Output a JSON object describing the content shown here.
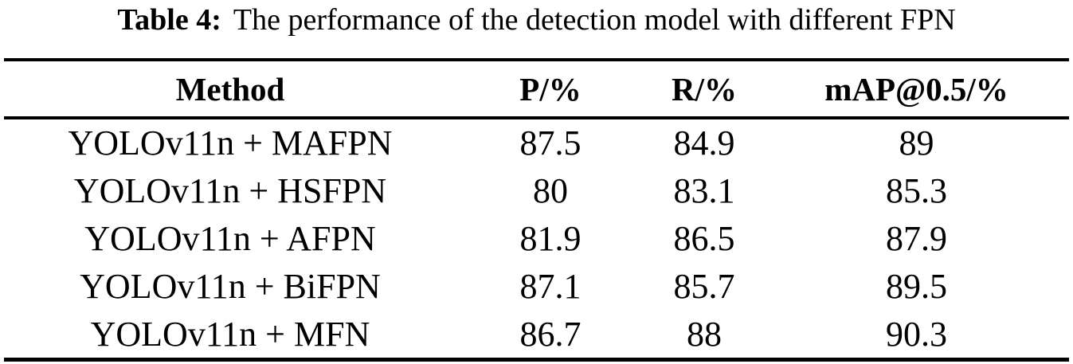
{
  "caption": {
    "label": "Table 4:",
    "text": "The performance of the detection model with different FPN"
  },
  "table": {
    "headers": {
      "method": "Method",
      "p": "P/%",
      "r": "R/%",
      "map": "mAP@0.5/%"
    },
    "rows": [
      {
        "method": "YOLOv11n + MAFPN",
        "p": "87.5",
        "r": "84.9",
        "map": "89"
      },
      {
        "method": "YOLOv11n + HSFPN",
        "p": "80",
        "r": "83.1",
        "map": "85.3"
      },
      {
        "method": "YOLOv11n + AFPN",
        "p": "81.9",
        "r": "86.5",
        "map": "87.9"
      },
      {
        "method": "YOLOv11n + BiFPN",
        "p": "87.1",
        "r": "85.7",
        "map": "89.5"
      },
      {
        "method": "YOLOv11n + MFN",
        "p": "86.7",
        "r": "88",
        "map": "90.3"
      }
    ]
  },
  "chart_data": {
    "type": "table",
    "title": "Table 4: The performance of the detection model with different FPN",
    "columns": [
      "Method",
      "P/%",
      "R/%",
      "mAP@0.5/%"
    ],
    "categories": [
      "YOLOv11n + MAFPN",
      "YOLOv11n + HSFPN",
      "YOLOv11n + AFPN",
      "YOLOv11n + BiFPN",
      "YOLOv11n + MFN"
    ],
    "series": [
      {
        "name": "P/%",
        "values": [
          87.5,
          80,
          81.9,
          87.1,
          86.7
        ]
      },
      {
        "name": "R/%",
        "values": [
          84.9,
          83.1,
          86.5,
          85.7,
          88
        ]
      },
      {
        "name": "mAP@0.5/%",
        "values": [
          89,
          85.3,
          87.9,
          89.5,
          90.3
        ]
      }
    ]
  },
  "colors": {
    "text": "#000000",
    "background": "#ffffff",
    "rule": "#000000"
  }
}
